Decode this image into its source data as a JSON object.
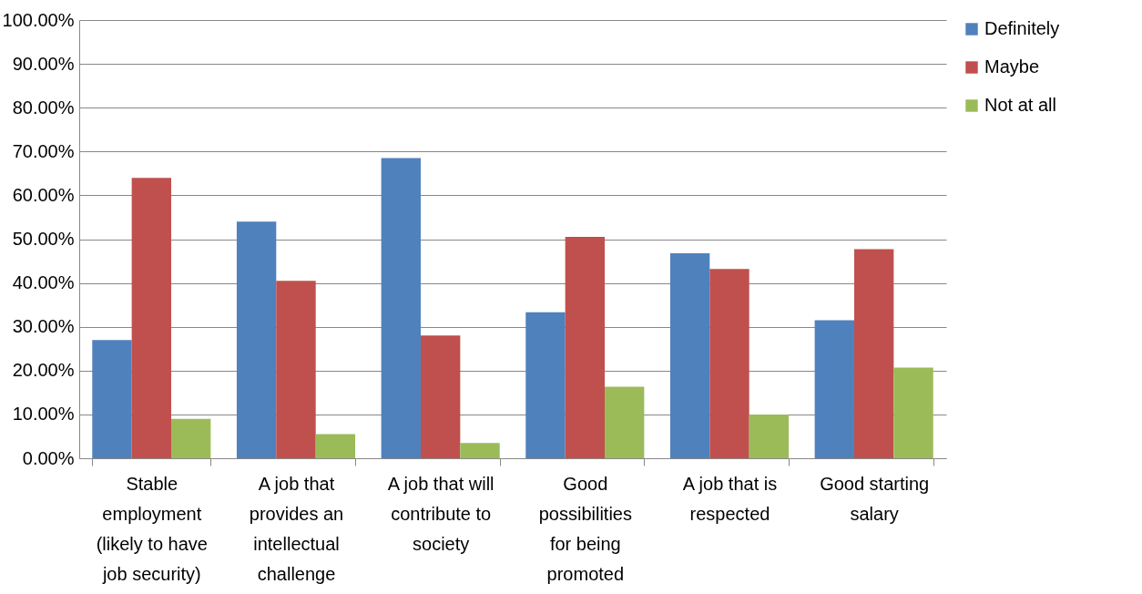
{
  "chart_data": {
    "type": "bar",
    "categories": [
      "Stable employment (likely to have job security)",
      "A job that provides an intellectual challenge",
      "A job that will contribute to society",
      "Good possibilities for being promoted",
      "A job that is respected",
      "Good starting salary"
    ],
    "series": [
      {
        "name": "Definitely",
        "color": "#4f81bd",
        "values": [
          27,
          54,
          68.5,
          33.3,
          46.8,
          31.5
        ]
      },
      {
        "name": "Maybe",
        "color": "#c0504d",
        "values": [
          64,
          40.5,
          28,
          50.5,
          43.2,
          47.7
        ]
      },
      {
        "name": "Not at all",
        "color": "#9bbb59",
        "values": [
          9,
          5.5,
          3.5,
          16.3,
          10,
          20.7
        ]
      }
    ],
    "ylim": [
      0,
      100
    ],
    "yticks": [
      {
        "value": 0,
        "label": "0.00%"
      },
      {
        "value": 10,
        "label": "10.00%"
      },
      {
        "value": 20,
        "label": "20.00%"
      },
      {
        "value": 30,
        "label": "30.00%"
      },
      {
        "value": 40,
        "label": "40.00%"
      },
      {
        "value": 50,
        "label": "50.00%"
      },
      {
        "value": 60,
        "label": "60.00%"
      },
      {
        "value": 70,
        "label": "70.00%"
      },
      {
        "value": 80,
        "label": "80.00%"
      },
      {
        "value": 90,
        "label": "90.00%"
      },
      {
        "value": 100,
        "label": "100.00%"
      }
    ],
    "grid": "y",
    "legend": "right"
  }
}
